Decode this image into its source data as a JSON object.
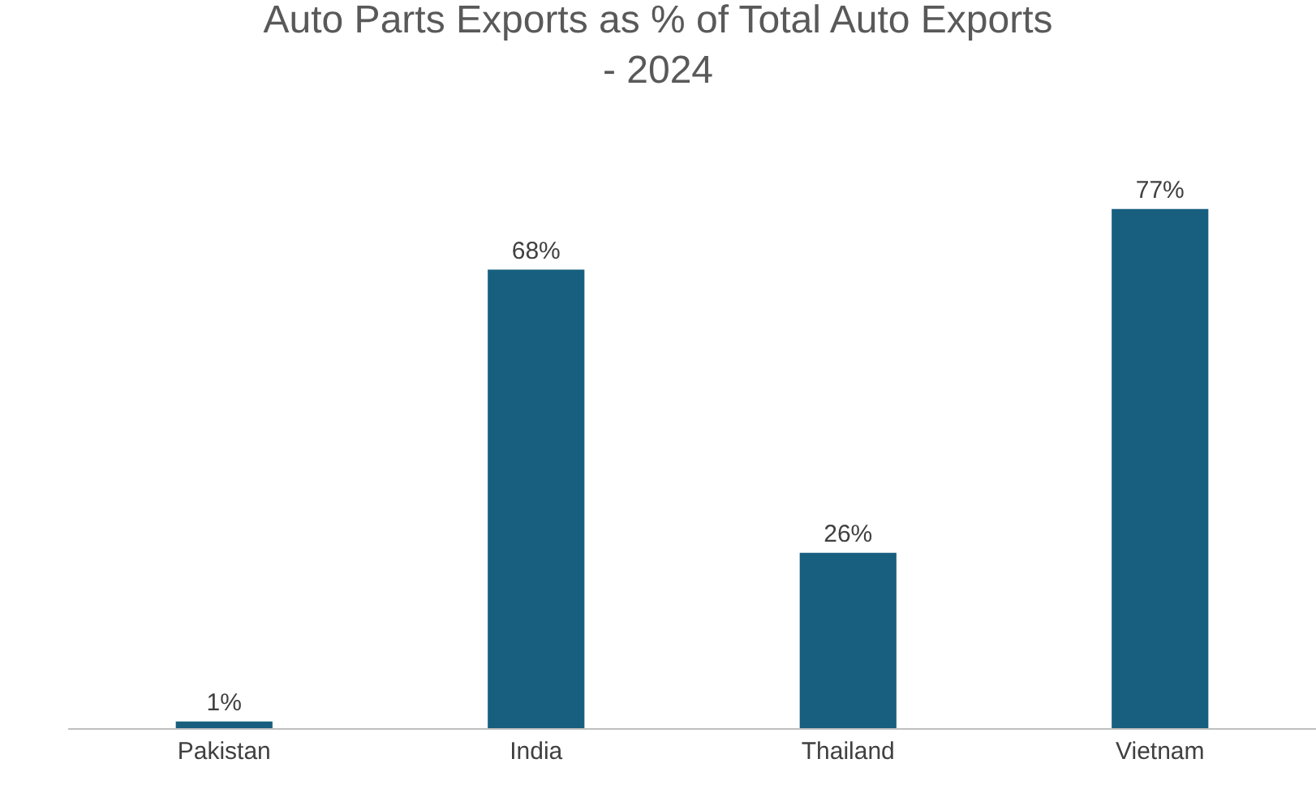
{
  "chart_data": {
    "type": "bar",
    "title": "Auto Parts Exports as % of Total Auto Exports - 2024",
    "categories": [
      "Pakistan",
      "India",
      "Thailand",
      "Vietnam"
    ],
    "values": [
      1,
      68,
      26,
      77
    ],
    "value_labels": [
      "1%",
      "68%",
      "26%",
      "77%"
    ],
    "color": "#185f7f",
    "grid": false,
    "legend": false
  }
}
